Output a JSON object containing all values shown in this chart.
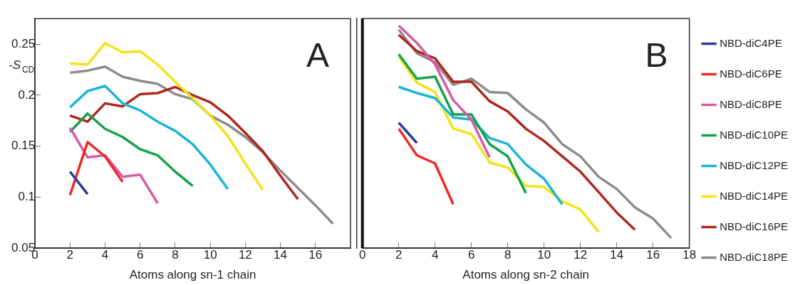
{
  "chart_data": [
    {
      "type": "line",
      "ylabel": "-S$_{CD}$",
      "xlabel": "Atoms along sn-1 chain",
      "annotations": [
        "A"
      ],
      "xlim": [
        0,
        18
      ],
      "xticks": [
        0,
        2,
        4,
        6,
        8,
        10,
        12,
        14,
        16
      ],
      "ylim": [
        0.05,
        0.275
      ],
      "yticks": [
        0.05,
        0.1,
        0.15,
        0.2,
        0.25
      ],
      "grid": false,
      "legend": false,
      "marker": "none",
      "line_style": "solid",
      "series": [
        {
          "color": "#2e3d9a",
          "x": [
            2,
            3
          ],
          "values": [
            0.125,
            0.103
          ]
        },
        {
          "color": "#ed2a24",
          "x": [
            2,
            3,
            4,
            5
          ],
          "values": [
            0.102,
            0.154,
            0.14,
            0.115
          ]
        },
        {
          "color": "#d95aa8",
          "x": [
            2,
            3,
            4,
            5,
            6,
            7
          ],
          "values": [
            0.168,
            0.139,
            0.141,
            0.12,
            0.122,
            0.094
          ]
        },
        {
          "color": "#13a24a",
          "x": [
            2,
            3,
            4,
            5,
            6,
            7,
            8,
            9
          ],
          "values": [
            0.164,
            0.182,
            0.167,
            0.159,
            0.147,
            0.141,
            0.125,
            0.111
          ]
        },
        {
          "color": "#19b4d8",
          "x": [
            2,
            3,
            4,
            5,
            6,
            7,
            8,
            9,
            10,
            11
          ],
          "values": [
            0.188,
            0.204,
            0.209,
            0.192,
            0.185,
            0.174,
            0.165,
            0.152,
            0.132,
            0.108
          ]
        },
        {
          "color": "#f4e21a",
          "x": [
            2,
            3,
            4,
            5,
            6,
            7,
            8,
            9,
            10,
            11,
            12,
            13
          ],
          "values": [
            0.231,
            0.23,
            0.251,
            0.242,
            0.243,
            0.23,
            0.213,
            0.197,
            0.18,
            0.16,
            0.133,
            0.107
          ]
        },
        {
          "color": "#b0271e",
          "x": [
            2,
            3,
            4,
            5,
            6,
            7,
            8,
            9,
            10,
            11,
            12,
            13,
            14,
            15
          ],
          "values": [
            0.18,
            0.174,
            0.192,
            0.189,
            0.201,
            0.202,
            0.208,
            0.2,
            0.193,
            0.18,
            0.163,
            0.145,
            0.121,
            0.098
          ]
        },
        {
          "color": "#8c8c8c",
          "x": [
            2,
            3,
            4,
            5,
            6,
            7,
            8,
            9,
            10,
            11,
            12,
            13,
            14,
            15,
            16,
            17
          ],
          "values": [
            0.222,
            0.224,
            0.228,
            0.218,
            0.214,
            0.211,
            0.201,
            0.196,
            0.18,
            0.171,
            0.159,
            0.144,
            0.126,
            0.109,
            0.092,
            0.074
          ]
        }
      ]
    },
    {
      "type": "line",
      "xlabel": "Atoms along sn-2 chain",
      "annotations": [
        "B"
      ],
      "xlim": [
        0,
        18
      ],
      "xticks": [
        0,
        2,
        4,
        6,
        8,
        10,
        12,
        14,
        16,
        18
      ],
      "ylim": [
        0.05,
        0.275
      ],
      "tick_labels": "x",
      "grid": false,
      "legend": "right",
      "marker": "none",
      "line_style": "solid",
      "series": [
        {
          "name": "NBD-diC4PE",
          "color": "#2e3d9a",
          "x": [
            2,
            3
          ],
          "values": [
            0.173,
            0.153
          ]
        },
        {
          "name": "NBD-diC6PE",
          "color": "#ed2a24",
          "x": [
            2,
            3,
            4,
            5
          ],
          "values": [
            0.167,
            0.141,
            0.133,
            0.093
          ]
        },
        {
          "name": "NBD-diC8PE",
          "color": "#d95aa8",
          "x": [
            2,
            3,
            4,
            5,
            6,
            7
          ],
          "values": [
            0.268,
            0.251,
            0.23,
            0.195,
            0.176,
            0.139
          ]
        },
        {
          "name": "NBD-diC10PE",
          "color": "#13a24a",
          "x": [
            2,
            3,
            4,
            5,
            6,
            7,
            8,
            9
          ],
          "values": [
            0.24,
            0.216,
            0.218,
            0.181,
            0.181,
            0.152,
            0.14,
            0.104
          ]
        },
        {
          "name": "NBD-diC12PE",
          "color": "#19b4d8",
          "x": [
            2,
            3,
            4,
            5,
            6,
            7,
            8,
            9,
            10,
            11
          ],
          "values": [
            0.208,
            0.202,
            0.197,
            0.178,
            0.176,
            0.158,
            0.152,
            0.132,
            0.118,
            0.093
          ]
        },
        {
          "name": "NBD-diC14PE",
          "color": "#f4e21a",
          "x": [
            2,
            3,
            4,
            5,
            6,
            7,
            8,
            9,
            10,
            11,
            12,
            13
          ],
          "values": [
            0.238,
            0.212,
            0.203,
            0.167,
            0.162,
            0.134,
            0.129,
            0.111,
            0.11,
            0.096,
            0.088,
            0.066
          ]
        },
        {
          "name": "NBD-diC16PE",
          "color": "#b0271e",
          "x": [
            2,
            3,
            4,
            5,
            6,
            7,
            8,
            9,
            10,
            11,
            12,
            13,
            14,
            15
          ],
          "values": [
            0.259,
            0.243,
            0.236,
            0.213,
            0.213,
            0.194,
            0.184,
            0.167,
            0.155,
            0.14,
            0.125,
            0.105,
            0.085,
            0.068
          ]
        },
        {
          "name": "NBD-diC18PE",
          "color": "#8c8c8c",
          "x": [
            2,
            3,
            4,
            5,
            6,
            7,
            8,
            9,
            10,
            11,
            12,
            13,
            14,
            15,
            16,
            17
          ],
          "values": [
            0.264,
            0.241,
            0.232,
            0.21,
            0.216,
            0.203,
            0.202,
            0.186,
            0.173,
            0.152,
            0.14,
            0.12,
            0.108,
            0.09,
            0.079,
            0.06
          ]
        }
      ]
    }
  ]
}
